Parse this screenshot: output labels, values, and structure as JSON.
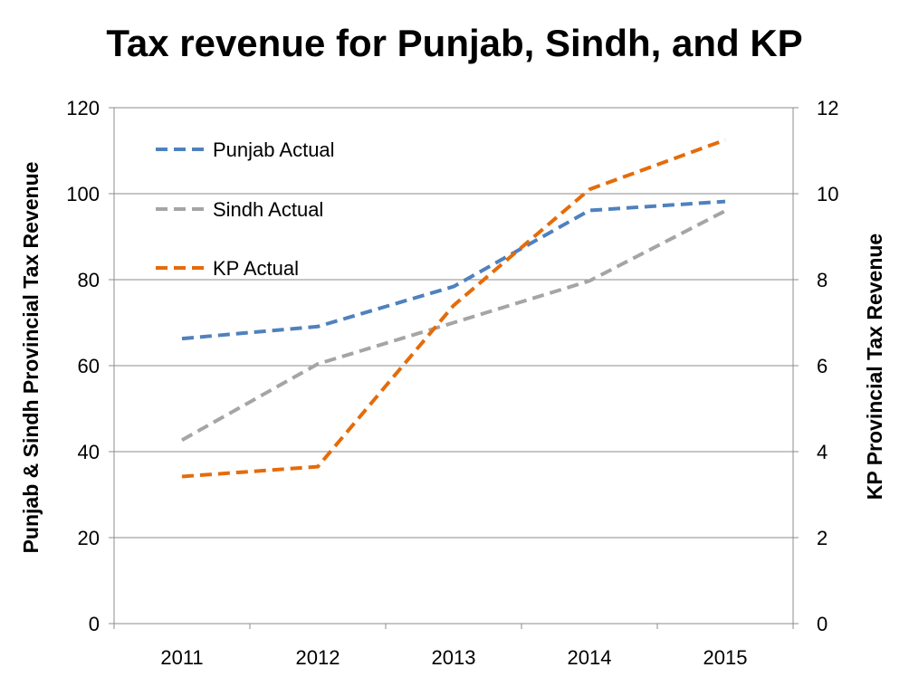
{
  "chart_data": {
    "type": "line",
    "title": "Tax revenue for Punjab, Sindh, and KP",
    "categories": [
      "2011",
      "2012",
      "2013",
      "2014",
      "2015"
    ],
    "ylabel": "Punjab & Sindh Provincial Tax Revenue",
    "ylabel_right": "KP Provincial Tax Revenue",
    "ylim": [
      0,
      120
    ],
    "ylim_right": [
      0,
      12
    ],
    "yticks": [
      "0",
      "20",
      "40",
      "60",
      "80",
      "100",
      "120"
    ],
    "yticks_right": [
      "0",
      "2",
      "4",
      "6",
      "8",
      "10",
      "12"
    ],
    "grid": true,
    "legend_position": "top-left",
    "series": [
      {
        "name": "Punjab Actual",
        "axis": "left",
        "color": "#4F81BD",
        "values": [
          66.3,
          69.1,
          78.4,
          96.1,
          98.2
        ]
      },
      {
        "name": "Sindh Actual",
        "axis": "left",
        "color": "#A5A5A5",
        "values": [
          42.7,
          60.4,
          70.0,
          79.7,
          96.0
        ]
      },
      {
        "name": "KP Actual",
        "axis": "right",
        "color": "#E46C0A",
        "values": [
          3.42,
          3.65,
          7.4,
          10.1,
          11.25
        ]
      }
    ]
  }
}
